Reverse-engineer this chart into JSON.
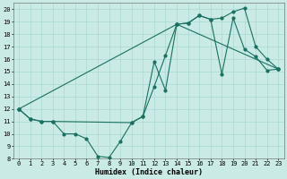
{
  "xlabel": "Humidex (Indice chaleur)",
  "xlim": [
    -0.5,
    23.5
  ],
  "ylim": [
    8,
    20.5
  ],
  "yticks": [
    8,
    9,
    10,
    11,
    12,
    13,
    14,
    15,
    16,
    17,
    18,
    19,
    20
  ],
  "xticks": [
    0,
    1,
    2,
    3,
    4,
    5,
    6,
    7,
    8,
    9,
    10,
    11,
    12,
    13,
    14,
    15,
    16,
    17,
    18,
    19,
    20,
    21,
    22,
    23
  ],
  "bg_color": "#caeae6",
  "line_color": "#1a7060",
  "grid_color": "#aad8d4",
  "series1_x": [
    0,
    1,
    2,
    3,
    4,
    5,
    6,
    7,
    8,
    9,
    10,
    11,
    12,
    13,
    14,
    15,
    16,
    17,
    18,
    19,
    20,
    21,
    22,
    23
  ],
  "series1_y": [
    12.0,
    11.2,
    11.0,
    11.0,
    10.0,
    10.0,
    9.6,
    8.2,
    8.1,
    9.4,
    10.9,
    11.4,
    13.8,
    16.3,
    18.8,
    18.9,
    19.5,
    19.2,
    14.8,
    19.3,
    16.8,
    16.2,
    15.1,
    15.2
  ],
  "series2_x": [
    0,
    1,
    2,
    3,
    10,
    11,
    12,
    13,
    14,
    15,
    16,
    17,
    18,
    19,
    20,
    21,
    22,
    23
  ],
  "series2_y": [
    12.0,
    11.2,
    11.0,
    11.0,
    10.9,
    11.4,
    15.8,
    13.5,
    18.8,
    18.9,
    19.5,
    19.2,
    19.3,
    19.8,
    20.1,
    17.0,
    16.0,
    15.2
  ],
  "series3_x": [
    0,
    14,
    23
  ],
  "series3_y": [
    12.0,
    18.8,
    15.2
  ]
}
